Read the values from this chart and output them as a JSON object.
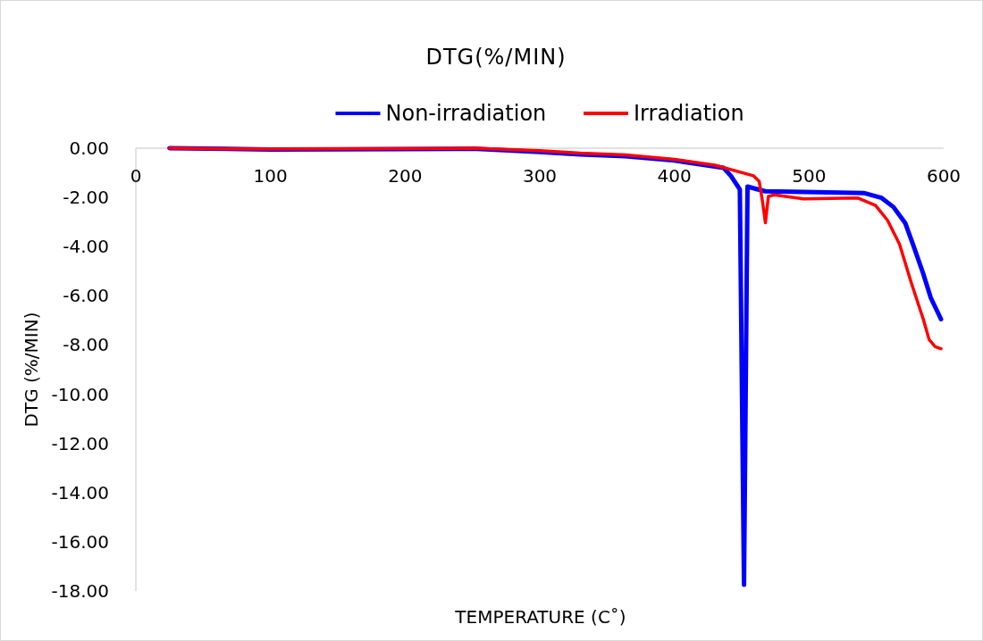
{
  "chart_data": {
    "type": "line",
    "title": "DTG(%/MIN)",
    "xlabel": "TEMPERATURE (C˚)",
    "ylabel": "DTG (%/MIN)",
    "xlim": [
      0,
      600
    ],
    "xticks": [
      0,
      100,
      200,
      300,
      400,
      500,
      600
    ],
    "ylim": [
      -18,
      0
    ],
    "yticks": [
      {
        "value": 0,
        "label": "0.00"
      },
      {
        "value": -2,
        "label": "-2.00"
      },
      {
        "value": -4,
        "label": "-4.00"
      },
      {
        "value": -6,
        "label": "-6.00"
      },
      {
        "value": -8,
        "label": "-8.00"
      },
      {
        "value": -10,
        "label": "-10.00"
      },
      {
        "value": -12,
        "label": "-12.00"
      },
      {
        "value": -14,
        "label": "-14.00"
      },
      {
        "value": -16,
        "label": "-16.00"
      },
      {
        "value": -18,
        "label": "-18.00"
      }
    ],
    "grid": false,
    "legend": "top",
    "marker": "none",
    "line_style": "solid",
    "series": [
      {
        "name": "Non-irradiation",
        "color": "#0000ff",
        "x": [
          25,
          100,
          200,
          250,
          300,
          330,
          363.6,
          400,
          436.6,
          442,
          448.6,
          451.7,
          454.3,
          461,
          467.5,
          496,
          540.6,
          553.9,
          562.7,
          571.5,
          578,
          584.8,
          590.4,
          598
        ],
        "values": [
          0,
          -0.05,
          -0.04,
          -0.02,
          -0.15,
          -0.25,
          -0.33,
          -0.5,
          -0.8,
          -1.13,
          -1.67,
          -17.75,
          -1.56,
          -1.66,
          -1.75,
          -1.78,
          -1.82,
          -2.02,
          -2.39,
          -3.05,
          -4.03,
          -5.1,
          -6.08,
          -6.95
        ]
      },
      {
        "name": "Irradiation",
        "color": "#ff0000",
        "x": [
          25,
          100,
          200,
          250,
          300,
          330,
          363.6,
          400,
          430,
          458.7,
          463,
          465.4,
          467.6,
          469.8,
          474,
          496,
          536,
          549.4,
          558.3,
          567.2,
          576,
          584.8,
          589.2,
          593.7,
          598
        ],
        "values": [
          0,
          -0.04,
          -0.02,
          0,
          -0.1,
          -0.2,
          -0.27,
          -0.45,
          -0.69,
          -1.12,
          -1.35,
          -2.15,
          -3.03,
          -1.96,
          -1.9,
          -2.06,
          -2.02,
          -2.33,
          -2.93,
          -3.9,
          -5.48,
          -6.94,
          -7.78,
          -8.07,
          -8.15
        ]
      }
    ]
  }
}
